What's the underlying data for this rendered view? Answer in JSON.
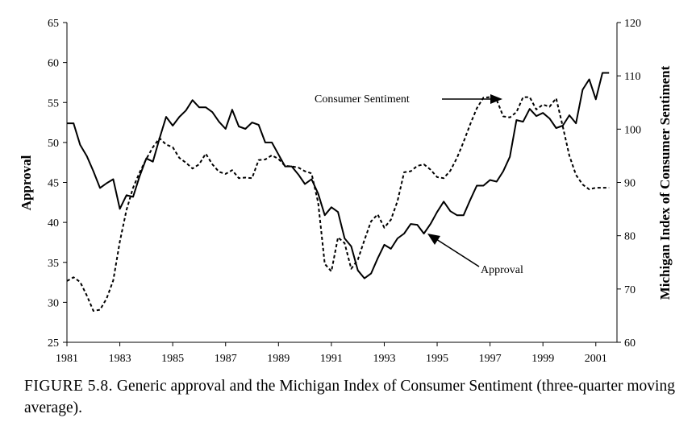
{
  "chart_data": {
    "type": "line",
    "title": "",
    "xlabel": "",
    "ylabel": "Approval",
    "y2label": "Michigan Index of Consumer Sentiment",
    "xlim": [
      1981,
      2001.8
    ],
    "ylim": [
      25,
      65
    ],
    "y2lim": [
      60,
      120
    ],
    "xticks": [
      "1981",
      "1983",
      "1985",
      "1987",
      "1989",
      "1991",
      "1993",
      "1995",
      "1997",
      "1999",
      "2001"
    ],
    "yticks": [
      "25",
      "30",
      "35",
      "40",
      "45",
      "50",
      "55",
      "60",
      "65"
    ],
    "y2ticks": [
      "60",
      "70",
      "80",
      "90",
      "100",
      "110",
      "120"
    ],
    "grid": false,
    "series": [
      {
        "name": "Approval",
        "axis": "left",
        "style": "solid",
        "x": [
          1981.0,
          1981.25,
          1981.5,
          1981.75,
          1982.0,
          1982.25,
          1982.5,
          1982.75,
          1983.0,
          1983.25,
          1983.5,
          1983.75,
          1984.0,
          1984.25,
          1984.5,
          1984.75,
          1985.0,
          1985.25,
          1985.5,
          1985.75,
          1986.0,
          1986.25,
          1986.5,
          1986.75,
          1987.0,
          1987.25,
          1987.5,
          1987.75,
          1988.0,
          1988.25,
          1988.5,
          1988.75,
          1989.0,
          1989.25,
          1989.5,
          1989.75,
          1990.0,
          1990.25,
          1990.5,
          1990.75,
          1991.0,
          1991.25,
          1991.5,
          1991.75,
          1992.0,
          1992.25,
          1992.5,
          1992.75,
          1993.0,
          1993.25,
          1993.5,
          1993.75,
          1994.0,
          1994.25,
          1994.5,
          1994.75,
          1995.0,
          1995.25,
          1995.5,
          1995.75,
          1996.0,
          1996.25,
          1996.5,
          1996.75,
          1997.0,
          1997.25,
          1997.5,
          1997.75,
          1998.0,
          1998.25,
          1998.5,
          1998.75,
          1999.0,
          1999.25,
          1999.5,
          1999.75,
          2000.0,
          2000.25,
          2000.5,
          2000.75,
          2001.0,
          2001.25,
          2001.5
        ],
        "values": [
          52.4,
          52.4,
          49.7,
          48.3,
          46.4,
          44.3,
          44.9,
          45.4,
          41.7,
          43.4,
          43.2,
          45.8,
          48.0,
          47.6,
          50.5,
          53.2,
          52.1,
          53.2,
          54.0,
          55.3,
          54.4,
          54.4,
          53.8,
          52.6,
          51.7,
          54.1,
          52.0,
          51.7,
          52.5,
          52.2,
          50.0,
          50.0,
          48.5,
          47.0,
          47.0,
          46.0,
          44.8,
          45.4,
          43.6,
          40.9,
          41.9,
          41.3,
          38.0,
          37.0,
          34.0,
          33.0,
          33.6,
          35.5,
          37.2,
          36.7,
          38.0,
          38.6,
          39.8,
          39.7,
          38.6,
          39.8,
          41.3,
          42.6,
          41.4,
          40.9,
          40.9,
          42.8,
          44.6,
          44.6,
          45.3,
          45.1,
          46.4,
          48.2,
          52.8,
          52.6,
          54.2,
          53.3,
          53.7,
          53.0,
          51.8,
          52.1,
          53.4,
          52.4,
          56.6,
          57.9,
          55.4,
          58.7,
          58.7
        ]
      },
      {
        "name": "Consumer Sentiment",
        "axis": "right",
        "style": "dashed",
        "x": [
          1981.0,
          1981.25,
          1981.5,
          1981.75,
          1982.0,
          1982.25,
          1982.5,
          1982.75,
          1983.0,
          1983.25,
          1983.5,
          1983.75,
          1984.0,
          1984.25,
          1984.5,
          1984.75,
          1985.0,
          1985.25,
          1985.5,
          1985.75,
          1986.0,
          1986.25,
          1986.5,
          1986.75,
          1987.0,
          1987.25,
          1987.5,
          1987.75,
          1988.0,
          1988.25,
          1988.5,
          1988.75,
          1989.0,
          1989.25,
          1989.5,
          1989.75,
          1990.0,
          1990.25,
          1990.5,
          1990.75,
          1991.0,
          1991.25,
          1991.5,
          1991.75,
          1992.0,
          1992.25,
          1992.5,
          1992.75,
          1993.0,
          1993.25,
          1993.5,
          1993.75,
          1994.0,
          1994.25,
          1994.5,
          1994.75,
          1995.0,
          1995.25,
          1995.5,
          1995.75,
          1996.0,
          1996.25,
          1996.5,
          1996.75,
          1997.0,
          1997.25,
          1997.5,
          1997.75,
          1998.0,
          1998.25,
          1998.5,
          1998.75,
          1999.0,
          1999.25,
          1999.5,
          1999.75,
          2000.0,
          2000.25,
          2000.5,
          2000.75,
          2001.0,
          2001.25,
          2001.5
        ],
        "values": [
          71.5,
          72.2,
          71.3,
          68.8,
          65.9,
          66.1,
          68.2,
          71.6,
          78.9,
          84.8,
          89.0,
          91.9,
          94.4,
          96.6,
          98.3,
          97.1,
          96.6,
          94.6,
          93.7,
          92.6,
          93.4,
          95.4,
          93.4,
          92.0,
          91.6,
          92.3,
          90.8,
          90.9,
          90.8,
          94.2,
          94.3,
          95.1,
          94.4,
          93.1,
          93.0,
          92.8,
          92.1,
          91.7,
          86.2,
          74.7,
          73.3,
          79.7,
          78.6,
          73.8,
          75.5,
          79.2,
          82.7,
          84.0,
          81.5,
          83.0,
          86.5,
          91.9,
          92.1,
          93.1,
          93.4,
          92.4,
          91.0,
          90.8,
          92.2,
          94.6,
          97.6,
          100.9,
          103.9,
          105.9,
          106.0,
          105.5,
          102.4,
          102.2,
          103.2,
          106.0,
          106.0,
          103.7,
          104.6,
          104.2,
          105.8,
          100.5,
          95.0,
          91.4,
          89.6,
          88.7,
          89.0,
          89.0,
          89.0
        ]
      }
    ],
    "annotations": [
      {
        "text": "Consumer Sentiment",
        "points_to": "Consumer Sentiment"
      },
      {
        "text": "Approval",
        "points_to": "Approval"
      }
    ]
  },
  "caption": {
    "figure_label": "FIGURE 5.8.",
    "text": "Generic approval and the Michigan Index of Consumer Sentiment (three-quarter moving average)."
  }
}
